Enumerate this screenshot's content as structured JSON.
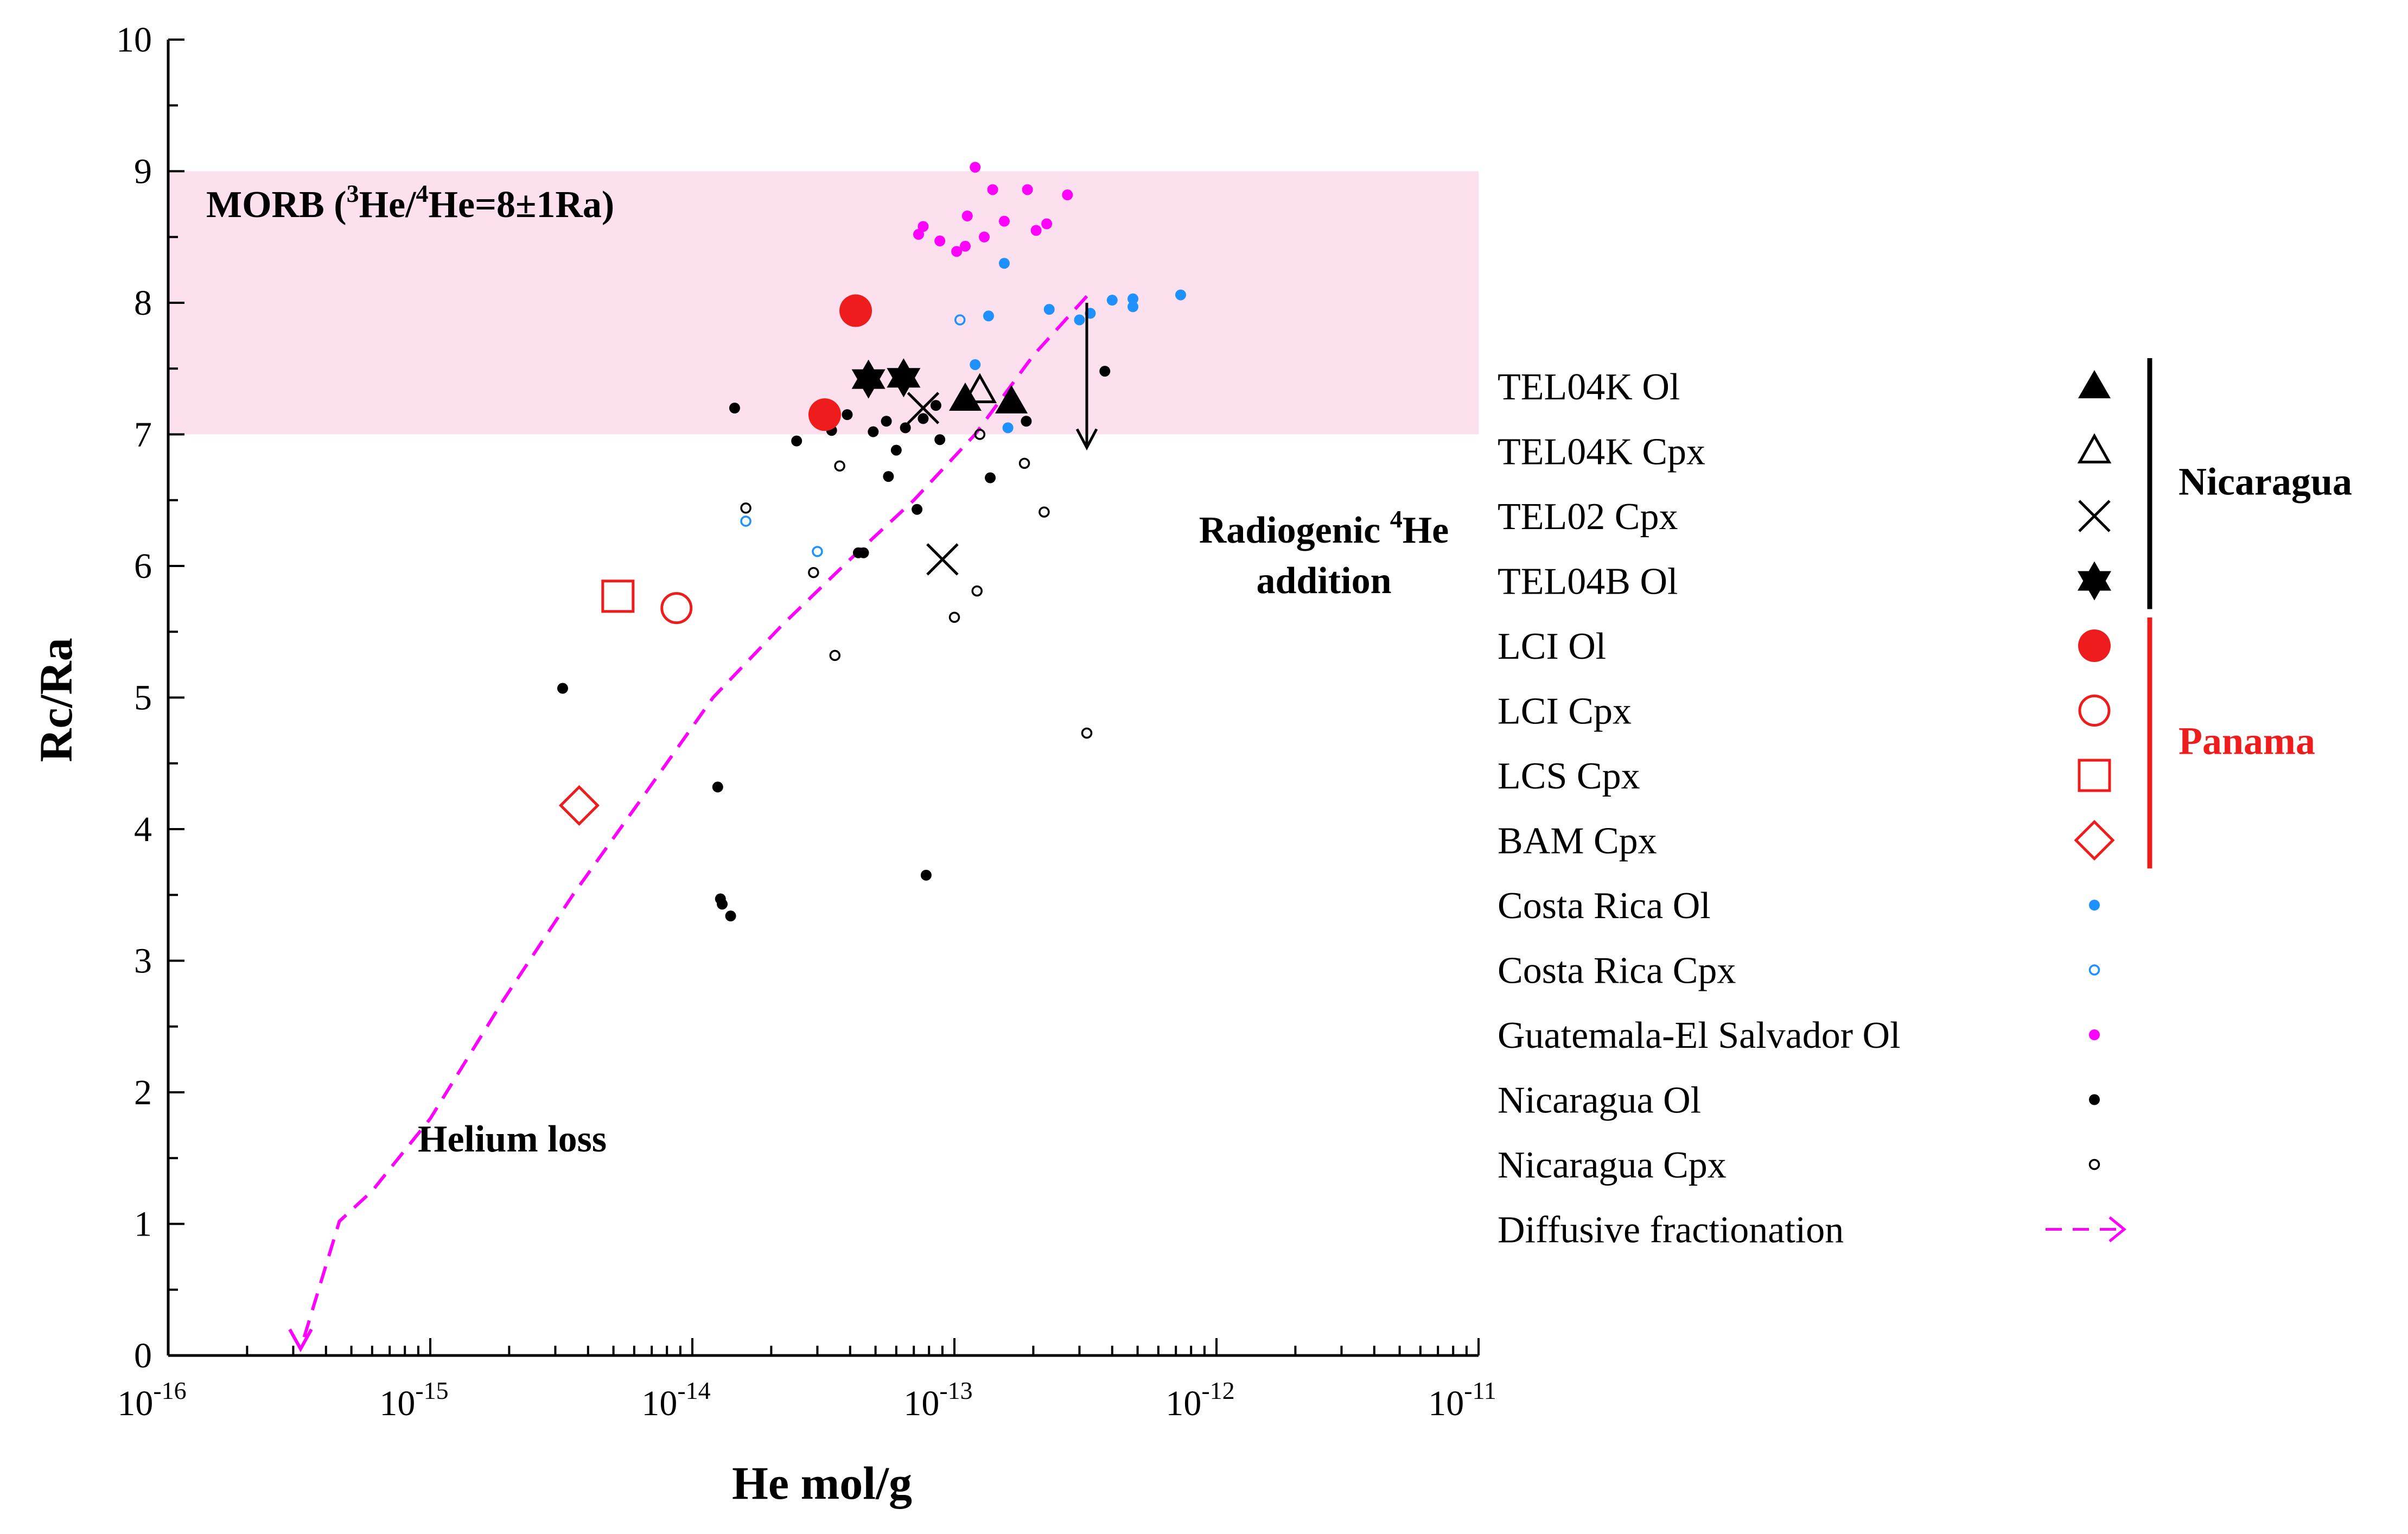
{
  "chart_data": {
    "type": "scatter",
    "xlabel": "He mol/g",
    "ylabel": "Rc/Ra",
    "xscale": "log",
    "xlim": [
      1e-16,
      1e-11
    ],
    "ylim": [
      0,
      10
    ],
    "x_tick_labels": [
      {
        "exp": -16,
        "base": "10",
        "sup": "-16"
      },
      {
        "exp": -15,
        "base": "10",
        "sup": "-15"
      },
      {
        "exp": -14,
        "base": "10",
        "sup": "-14"
      },
      {
        "exp": -13,
        "base": "10",
        "sup": "-13"
      },
      {
        "exp": -12,
        "base": "10",
        "sup": "-12"
      },
      {
        "exp": -11,
        "base": "10",
        "sup": "-11"
      }
    ],
    "y_ticks": [
      0,
      1,
      2,
      3,
      4,
      5,
      6,
      7,
      8,
      9,
      10
    ],
    "morb_band": {
      "y_range": [
        7,
        9
      ],
      "x_range": [
        1e-16,
        1e-11
      ],
      "color": "#fce0ee",
      "label_prefix": "MORB (",
      "label_sup1": "3",
      "label_mid": "He/",
      "label_sup2": "4",
      "label_suffix": "He=8±1Ra)"
    },
    "annotations": {
      "radiogenic_line1_prefix": "Radiogenic ",
      "radiogenic_sup": "4",
      "radiogenic_line1_suffix": "He",
      "radiogenic_line2": "addition",
      "radiogenic_arrow": {
        "x": 3.2e-13,
        "y_from": 8.0,
        "y_to": 6.9
      },
      "helium_loss": "Helium loss",
      "helium_loss_color": "#ff00ff"
    },
    "series": [
      {
        "name": "TEL04K Ol",
        "marker": "triangle-filled",
        "color": "#000000",
        "points": [
          [
            1.1e-13,
            7.27
          ],
          [
            1.65e-13,
            7.25
          ]
        ]
      },
      {
        "name": "TEL04K Cpx",
        "marker": "triangle-open",
        "color": "#000000",
        "points": [
          [
            1.25e-13,
            7.33
          ]
        ]
      },
      {
        "name": "TEL02 Cpx",
        "marker": "cross",
        "color": "#000000",
        "points": [
          [
            7.6e-14,
            7.2
          ],
          [
            9e-14,
            6.05
          ]
        ]
      },
      {
        "name": "TEL04B Ol",
        "marker": "star6",
        "color": "#000000",
        "points": [
          [
            4.7e-14,
            7.42
          ],
          [
            6.4e-14,
            7.43
          ]
        ]
      },
      {
        "name": "LCI Ol",
        "marker": "circle-filled",
        "color": "#ee1c1c",
        "points": [
          [
            4.2e-14,
            7.94
          ],
          [
            3.2e-14,
            7.15
          ]
        ]
      },
      {
        "name": "LCI Cpx",
        "marker": "circle-open",
        "color": "#ee1c1c",
        "points": [
          [
            8.7e-15,
            5.68
          ]
        ]
      },
      {
        "name": "LCS Cpx",
        "marker": "square-open",
        "color": "#ee1c1c",
        "points": [
          [
            5.2e-15,
            5.77
          ]
        ]
      },
      {
        "name": "BAM Cpx",
        "marker": "diamond-open",
        "color": "#ee1c1c",
        "points": [
          [
            3.7e-15,
            4.18
          ]
        ]
      },
      {
        "name": "Costa Rica Ol",
        "marker": "dot-filled",
        "color": "#1e90ff",
        "points": [
          [
            1.2e-13,
            7.53
          ],
          [
            1.35e-13,
            7.9
          ],
          [
            1.55e-13,
            8.3
          ],
          [
            1.6e-13,
            7.05
          ],
          [
            2.3e-13,
            7.95
          ],
          [
            3e-13,
            7.87
          ],
          [
            3.3e-13,
            7.92
          ],
          [
            4e-13,
            8.02
          ],
          [
            4.8e-13,
            8.03
          ],
          [
            4.8e-13,
            7.97
          ],
          [
            7.3e-13,
            8.06
          ]
        ]
      },
      {
        "name": "Costa Rica Cpx",
        "marker": "dot-open",
        "color": "#1e90ff",
        "points": [
          [
            1.05e-13,
            7.87
          ],
          [
            1.6e-14,
            6.34
          ],
          [
            3e-14,
            6.11
          ]
        ]
      },
      {
        "name": "Guatemala-El Salvador Ol",
        "marker": "dot-filled",
        "color": "#ff00ff",
        "points": [
          [
            7.3e-14,
            8.52
          ],
          [
            7.6e-14,
            8.58
          ],
          [
            8.8e-14,
            8.47
          ],
          [
            1.02e-13,
            8.39
          ],
          [
            1.1e-13,
            8.43
          ],
          [
            1.12e-13,
            8.66
          ],
          [
            1.2e-13,
            9.03
          ],
          [
            1.3e-13,
            8.5
          ],
          [
            1.4e-13,
            8.86
          ],
          [
            1.55e-13,
            8.62
          ],
          [
            1.9e-13,
            8.86
          ],
          [
            2.05e-13,
            8.55
          ],
          [
            2.25e-13,
            8.6
          ],
          [
            2.7e-13,
            8.82
          ]
        ]
      },
      {
        "name": "Nicaragua Ol",
        "marker": "dot-filled",
        "color": "#000000",
        "points": [
          [
            1.45e-14,
            7.2
          ],
          [
            2.5e-14,
            6.95
          ],
          [
            3.4e-14,
            7.03
          ],
          [
            3.9e-14,
            7.15
          ],
          [
            4.3e-14,
            6.1
          ],
          [
            4.5e-14,
            6.1
          ],
          [
            4.9e-14,
            7.02
          ],
          [
            5.5e-14,
            7.1
          ],
          [
            5.6e-14,
            6.68
          ],
          [
            6e-14,
            6.88
          ],
          [
            6.5e-14,
            7.05
          ],
          [
            7.2e-14,
            6.43
          ],
          [
            7.6e-14,
            7.12
          ],
          [
            8.5e-14,
            7.22
          ],
          [
            8.8e-14,
            6.96
          ],
          [
            1.37e-13,
            6.67
          ],
          [
            1.88e-13,
            7.1
          ],
          [
            3.75e-13,
            7.48
          ],
          [
            3.2e-15,
            5.07
          ],
          [
            1.25e-14,
            4.32
          ],
          [
            7.8e-14,
            3.65
          ],
          [
            1.28e-14,
            3.47
          ],
          [
            1.3e-14,
            3.43
          ],
          [
            1.4e-14,
            3.34
          ]
        ]
      },
      {
        "name": "Nicaragua Cpx",
        "marker": "dot-open",
        "color": "#000000",
        "points": [
          [
            1.6e-14,
            6.44
          ],
          [
            3.65e-14,
            6.76
          ],
          [
            2.9e-14,
            5.95
          ],
          [
            3.5e-14,
            5.32
          ],
          [
            1e-13,
            5.61
          ],
          [
            1.22e-13,
            5.81
          ],
          [
            1.25e-13,
            7.0
          ],
          [
            1.85e-13,
            6.78
          ],
          [
            2.2e-13,
            6.41
          ],
          [
            3.2e-13,
            4.73
          ]
        ]
      },
      {
        "name": "Diffusive fractionation",
        "marker": "dashed-arrow",
        "color": "#ff00ff",
        "points": [
          [
            3.2e-13,
            8.05
          ],
          [
            2e-13,
            7.6
          ],
          [
            1.2e-13,
            7.0
          ],
          [
            7e-14,
            6.5
          ],
          [
            4e-14,
            6.05
          ],
          [
            2.2e-14,
            5.55
          ],
          [
            1.2e-14,
            5.0
          ],
          [
            6.5e-15,
            4.25
          ],
          [
            3.5e-15,
            3.5
          ],
          [
            1.9e-15,
            2.7
          ],
          [
            1e-15,
            1.8
          ],
          [
            6e-16,
            1.25
          ],
          [
            4.5e-16,
            1.02
          ],
          [
            3.2e-16,
            0.05
          ]
        ]
      }
    ],
    "legend_groups": [
      {
        "label": "Nicaragua",
        "color": "#000000",
        "members": [
          "TEL04K Ol",
          "TEL04K Cpx",
          "TEL02 Cpx",
          "TEL04B Ol"
        ]
      },
      {
        "label": "Panama",
        "color": "#ee1c1c",
        "members": [
          "LCI Ol",
          "LCI Cpx",
          "LCS Cpx",
          "BAM Cpx"
        ]
      }
    ],
    "legend_placement": "right"
  }
}
